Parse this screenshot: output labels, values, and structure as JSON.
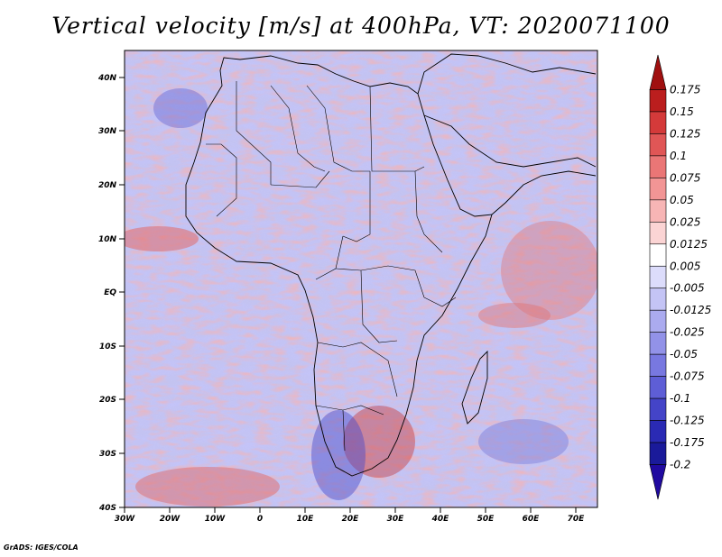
{
  "title": "Vertical velocity [m/s] at 400hPa, VT: 2020071100",
  "credit": "GrADS: IGES/COLA",
  "map": {
    "lon_range": [
      -30,
      75
    ],
    "lat_range": [
      -40,
      45
    ],
    "x_ticks": [
      "30W",
      "20W",
      "10W",
      "0",
      "10E",
      "20E",
      "30E",
      "40E",
      "50E",
      "60E",
      "70E"
    ],
    "y_ticks": [
      "40N",
      "30N",
      "20N",
      "10N",
      "EQ",
      "10S",
      "20S",
      "30S",
      "40S"
    ],
    "background_color": "#ffffff",
    "region": "Africa"
  },
  "colorbar": {
    "levels": [
      "0.175",
      "0.15",
      "0.125",
      "0.1",
      "0.075",
      "0.05",
      "0.025",
      "0.0125",
      "0.005",
      "-0.005",
      "-0.0125",
      "-0.025",
      "-0.05",
      "-0.075",
      "-0.1",
      "-0.125",
      "-0.175",
      "-0.2"
    ],
    "colors": [
      "#a01010",
      "#bb1e1e",
      "#d43a3a",
      "#e05656",
      "#ea7676",
      "#f29595",
      "#f7b5b5",
      "#fbd4d4",
      "#ffffff",
      "#dcdcfb",
      "#c4c4f5",
      "#ababef",
      "#9292e8",
      "#7878e0",
      "#5e5ed6",
      "#4444c8",
      "#2a2ab4",
      "#1a1a9a",
      "#200aa0"
    ]
  }
}
